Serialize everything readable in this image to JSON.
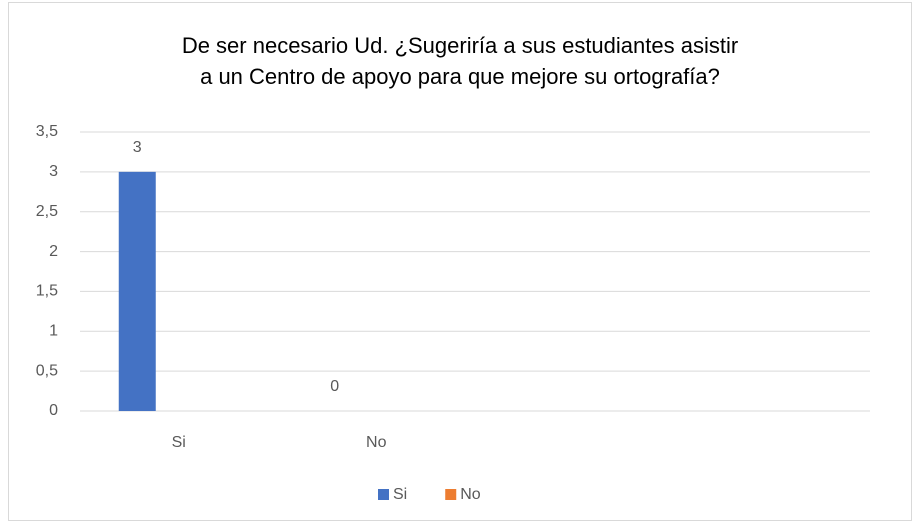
{
  "chart_data": {
    "type": "bar",
    "title": [
      "De ser necesario Ud. ¿Sugeriría a sus estudiantes asistir",
      "a un Centro de apoyo para que mejore su ortografía?"
    ],
    "categories": [
      "Si",
      "No",
      null,
      null
    ],
    "series": [
      {
        "name": "Si",
        "color": "#4472c4",
        "values": [
          3,
          0,
          null,
          null
        ]
      },
      {
        "name": "No",
        "color": "#ed7d31",
        "values": [
          null,
          null,
          null,
          null
        ]
      }
    ],
    "ylim": [
      0,
      3.5
    ],
    "yticks": [
      0,
      {
        "value": 0.5,
        "label": "0,5"
      },
      1,
      {
        "value": 1.5,
        "label": "1,5"
      },
      2,
      {
        "value": 2.5,
        "label": "2,5"
      },
      3,
      {
        "value": 3.5,
        "label": "3,5"
      }
    ],
    "grid": true,
    "legend": "bottom"
  }
}
